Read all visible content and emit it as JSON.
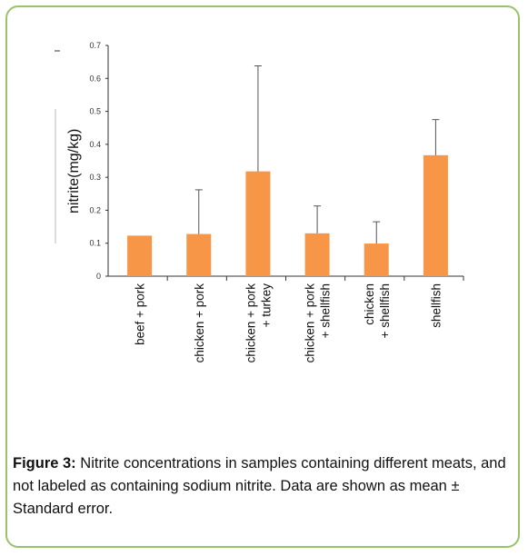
{
  "chart_data": {
    "type": "bar",
    "ylabel": "nitrite(mg/kg)",
    "xlabel": "",
    "ylim": [
      0,
      0.7
    ],
    "yticks": [
      "0",
      "0.1",
      "0.2",
      "0.3",
      "0.4",
      "0.5",
      "0.6",
      "0.7"
    ],
    "bar_color": "#f79646",
    "categories": [
      [
        "beef + pork"
      ],
      [
        "chicken + pork"
      ],
      [
        "chicken + pork",
        "+ turkey"
      ],
      [
        "chicken + pork",
        "+ shellfish"
      ],
      [
        "chicken",
        "+ shellfish"
      ],
      [
        "shellfish"
      ]
    ],
    "values": [
      0.123,
      0.128,
      0.318,
      0.13,
      0.099,
      0.367
    ],
    "error_upper": [
      0.123,
      0.262,
      0.638,
      0.213,
      0.165,
      0.475
    ]
  },
  "caption": {
    "label": "Figure 3:",
    "text": " Nitrite concentrations in samples containing different meats, and not labeled as containing sodium nitrite. Data are shown as mean ± Standard error."
  }
}
